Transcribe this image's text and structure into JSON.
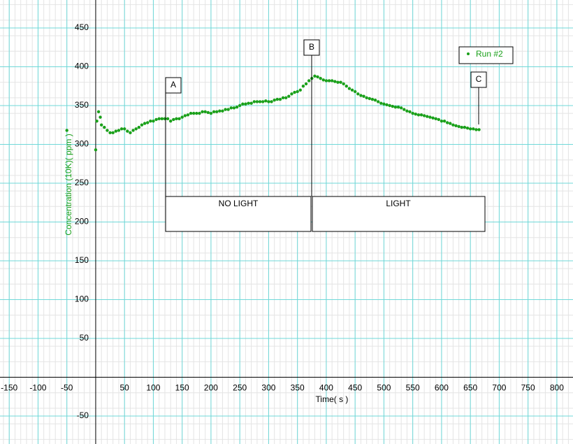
{
  "chart_data": {
    "type": "scatter",
    "x_label": "Time( s )",
    "y_label": "Concentration (10K)( ppm )",
    "xlim": [
      -166,
      828
    ],
    "ylim": [
      -86,
      486
    ],
    "xticks": [
      -150,
      -100,
      -50,
      50,
      100,
      150,
      200,
      250,
      300,
      350,
      400,
      450,
      500,
      550,
      600,
      650,
      700,
      750,
      800
    ],
    "yticks": [
      -50,
      50,
      100,
      150,
      200,
      250,
      300,
      350,
      400,
      450
    ],
    "grid": true,
    "legend": "top-right",
    "annotations": [
      "A",
      "B",
      "C",
      "NO LIGHT",
      "LIGHT"
    ],
    "series": [
      {
        "name": "Run #2",
        "color": "#1aa01a",
        "x": [
          -50,
          0,
          2,
          5,
          8,
          10,
          15,
          20,
          25,
          30,
          35,
          40,
          45,
          50,
          55,
          60,
          65,
          70,
          75,
          80,
          85,
          90,
          95,
          100,
          105,
          110,
          115,
          120,
          125,
          130,
          135,
          140,
          145,
          150,
          155,
          160,
          165,
          170,
          175,
          180,
          185,
          190,
          195,
          200,
          205,
          210,
          215,
          220,
          225,
          230,
          235,
          240,
          245,
          250,
          255,
          260,
          265,
          270,
          275,
          280,
          285,
          290,
          295,
          300,
          305,
          310,
          315,
          320,
          325,
          330,
          335,
          340,
          345,
          350,
          355,
          360,
          365,
          370,
          375,
          380,
          385,
          390,
          395,
          400,
          405,
          410,
          415,
          420,
          425,
          430,
          435,
          440,
          445,
          450,
          455,
          460,
          465,
          470,
          475,
          480,
          485,
          490,
          495,
          500,
          505,
          510,
          515,
          520,
          525,
          530,
          535,
          540,
          545,
          550,
          555,
          560,
          565,
          570,
          575,
          580,
          585,
          590,
          595,
          600,
          605,
          610,
          615,
          620,
          625,
          630,
          635,
          640,
          645,
          650,
          655,
          660,
          665
        ],
        "values": [
          318,
          293,
          330,
          342,
          335,
          325,
          322,
          318,
          315,
          315,
          317,
          318,
          320,
          320,
          317,
          315,
          318,
          320,
          322,
          325,
          327,
          328,
          330,
          330,
          332,
          333,
          333,
          333,
          333,
          330,
          332,
          333,
          333,
          335,
          337,
          338,
          340,
          340,
          340,
          340,
          342,
          342,
          341,
          340,
          342,
          342,
          343,
          343,
          345,
          345,
          347,
          347,
          348,
          350,
          352,
          352,
          353,
          353,
          355,
          355,
          355,
          355,
          356,
          355,
          355,
          357,
          358,
          358,
          360,
          360,
          362,
          365,
          367,
          368,
          370,
          375,
          378,
          382,
          385,
          388,
          387,
          385,
          383,
          382,
          382,
          382,
          381,
          380,
          380,
          378,
          375,
          372,
          370,
          368,
          365,
          363,
          362,
          360,
          359,
          358,
          357,
          355,
          353,
          352,
          351,
          350,
          349,
          348,
          348,
          347,
          345,
          343,
          342,
          340,
          339,
          338,
          338,
          337,
          336,
          335,
          334,
          333,
          332,
          330,
          330,
          328,
          327,
          325,
          324,
          323,
          322,
          322,
          321,
          320,
          320,
          319,
          319
        ]
      }
    ]
  }
}
